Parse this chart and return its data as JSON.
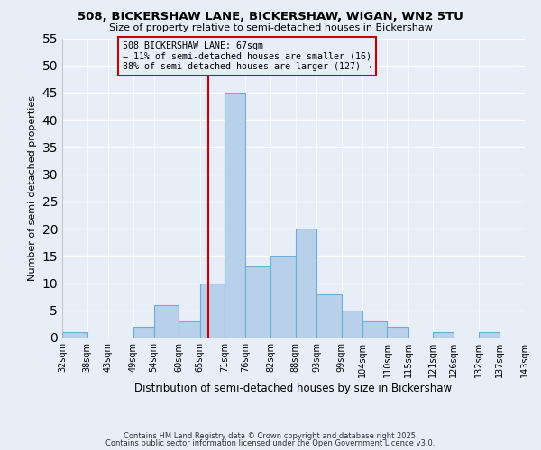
{
  "title": "508, BICKERSHAW LANE, BICKERSHAW, WIGAN, WN2 5TU",
  "subtitle": "Size of property relative to semi-detached houses in Bickershaw",
  "xlabel": "Distribution of semi-detached houses by size in Bickershaw",
  "ylabel": "Number of semi-detached properties",
  "bin_edges": [
    32,
    38,
    43,
    49,
    54,
    60,
    65,
    71,
    76,
    82,
    88,
    93,
    99,
    104,
    110,
    115,
    121,
    126,
    132,
    137,
    143
  ],
  "counts": [
    1,
    0,
    0,
    2,
    6,
    3,
    10,
    45,
    13,
    15,
    20,
    8,
    5,
    3,
    2,
    0,
    1,
    0,
    1,
    0
  ],
  "tick_labels": [
    "32sqm",
    "38sqm",
    "43sqm",
    "49sqm",
    "54sqm",
    "60sqm",
    "65sqm",
    "71sqm",
    "76sqm",
    "82sqm",
    "88sqm",
    "93sqm",
    "99sqm",
    "104sqm",
    "110sqm",
    "115sqm",
    "121sqm",
    "126sqm",
    "132sqm",
    "137sqm",
    "143sqm"
  ],
  "bar_color": "#b8d0ea",
  "bar_edge_color": "#6baed6",
  "vline_x": 67,
  "vline_color": "#cc0000",
  "annotation_title": "508 BICKERSHAW LANE: 67sqm",
  "annotation_line1": "← 11% of semi-detached houses are smaller (16)",
  "annotation_line2": "88% of semi-detached houses are larger (127) →",
  "annotation_box_color": "#cc0000",
  "ylim": [
    0,
    55
  ],
  "yticks": [
    0,
    5,
    10,
    15,
    20,
    25,
    30,
    35,
    40,
    45,
    50,
    55
  ],
  "bg_color": "#e8eef8",
  "grid_color": "#ffffff",
  "footnote1": "Contains HM Land Registry data © Crown copyright and database right 2025.",
  "footnote2": "Contains public sector information licensed under the Open Government Licence v3.0."
}
